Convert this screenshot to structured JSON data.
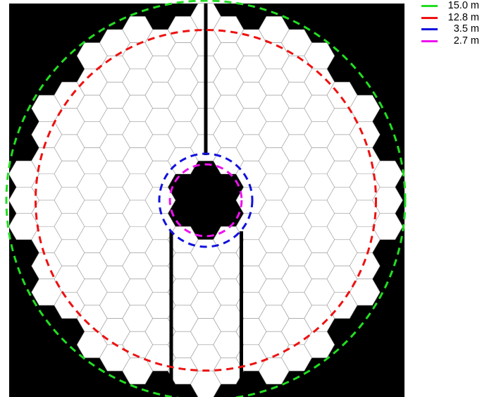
{
  "legend": {
    "items": [
      {
        "label": "15.0 m",
        "color": "#22dd22",
        "diameter_m": 15.0
      },
      {
        "label": "12.8 m",
        "color": "#ee1111",
        "diameter_m": 12.8
      },
      {
        "label": "3.5 m",
        "color": "#1111dd",
        "diameter_m": 3.5
      },
      {
        "label": "2.7 m",
        "color": "#ee11ee",
        "diameter_m": 2.7
      }
    ]
  },
  "colors": {
    "background": "#000000",
    "segment_fill": "#ffffff",
    "segment_edge": "#999999"
  },
  "diagram": {
    "shape": "hexagonal-segment-primary-mirror",
    "outer_circle": "15.0 m",
    "inscribed_circle": "12.8 m",
    "central_obscuration": "3.5 m",
    "inner_circle": "2.7 m"
  }
}
